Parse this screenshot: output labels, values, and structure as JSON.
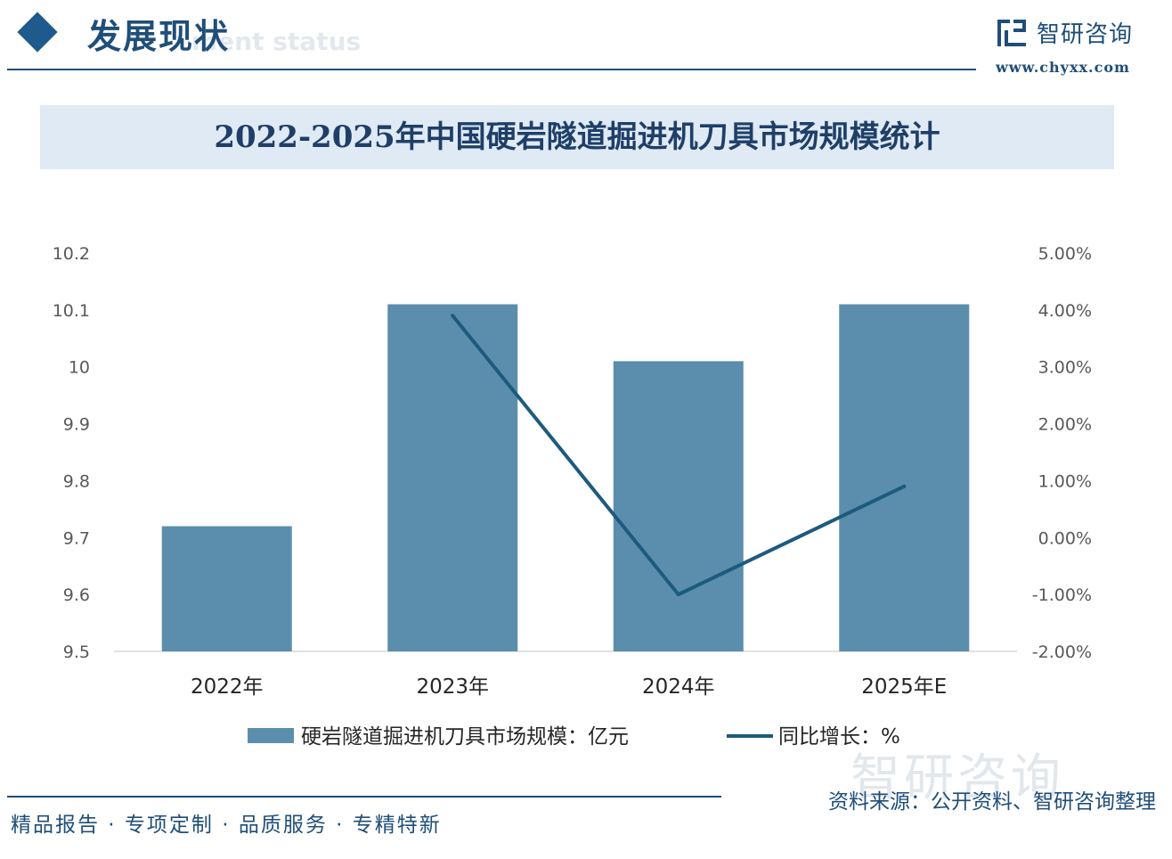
{
  "header": {
    "section_title": "发展现状",
    "section_subtitle_en": "ment status",
    "brand_name": "智研咨询",
    "brand_url": "www.chyxx.com"
  },
  "chart_data": {
    "type": "bar",
    "title": "2022-2025年中国硬岩隧道掘进机刀具市场规模统计",
    "categories": [
      "2022年",
      "2023年",
      "2024年",
      "2025年E"
    ],
    "series": [
      {
        "name": "硬岩隧道掘进机刀具市场规模：亿元",
        "type": "bar",
        "axis": "left",
        "values": [
          9.72,
          10.11,
          10.01,
          10.11
        ]
      },
      {
        "name": "同比增长：%",
        "type": "line",
        "axis": "right",
        "values": [
          null,
          3.9,
          -1.0,
          0.9
        ]
      }
    ],
    "ylim_left": [
      9.5,
      10.2
    ],
    "ylim_right": [
      -2.0,
      5.0
    ],
    "y_ticks_left": [
      "9.5",
      "9.6",
      "9.7",
      "9.8",
      "9.9",
      "10",
      "10.1",
      "10.2"
    ],
    "y_ticks_right": [
      "-2.00%",
      "-1.00%",
      "0.00%",
      "1.00%",
      "2.00%",
      "3.00%",
      "4.00%",
      "5.00%"
    ],
    "grid": false,
    "legend_position": "bottom",
    "colors": {
      "bar": "#5b8ead",
      "line": "#1d5b7e"
    }
  },
  "footer": {
    "tagline": "精品报告 · 专项定制 · 品质服务 · 专精特新",
    "source": "资料来源：公开资料、智研咨询整理"
  },
  "watermark": {
    "text": "智研咨询"
  }
}
